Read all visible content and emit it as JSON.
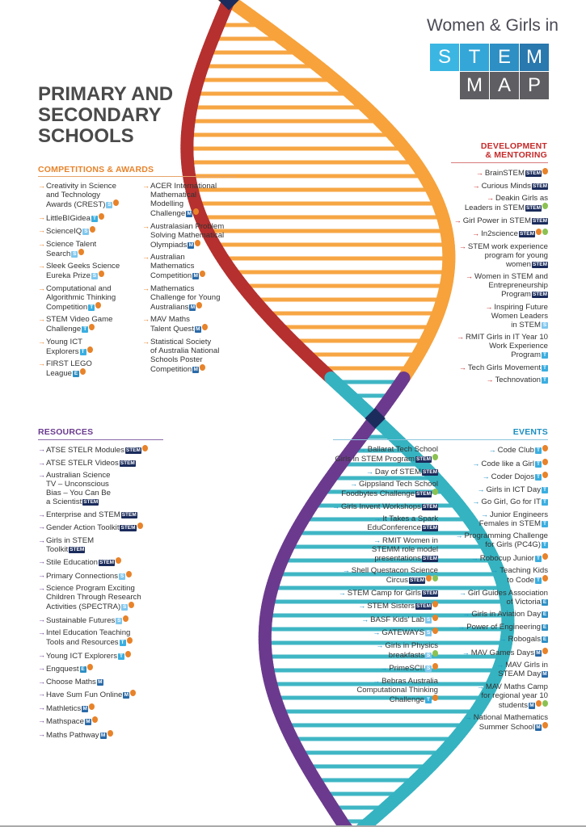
{
  "logo": {
    "title": "Women & Girls in",
    "stem_letters": [
      "S",
      "T",
      "E",
      "M"
    ],
    "map_letters": [
      "M",
      "A",
      "P"
    ]
  },
  "page_title": [
    "PRIMARY AND",
    "SECONDARY",
    "SCHOOLS"
  ],
  "colors": {
    "helix_orange": "#f7a23b",
    "helix_red": "#b5302f",
    "helix_purple": "#6b3a8e",
    "helix_teal": "#35b3c1",
    "helix_navy": "#1b2c5c"
  },
  "badge_legend": {
    "STEM": "STEM badge",
    "S": "science badge",
    "T": "technology badge",
    "E": "engineering badge",
    "M": "maths badge",
    "C": "orange circle badge",
    "P": "green circle badge"
  },
  "competitions": {
    "heading": "COMPETITIONS & AWARDS",
    "col1": [
      {
        "lines": [
          "Creativity in Science",
          "and Technology",
          "Awards (CREST)"
        ],
        "badges": [
          "S",
          "C"
        ]
      },
      {
        "lines": [
          "LittleBIGidea"
        ],
        "badges": [
          "T",
          "C"
        ]
      },
      {
        "lines": [
          "ScienceIQ"
        ],
        "badges": [
          "S",
          "C"
        ]
      },
      {
        "lines": [
          "Science Talent",
          "Search"
        ],
        "badges": [
          "S",
          "C"
        ]
      },
      {
        "lines": [
          "Sleek Geeks Science",
          "Eureka Prize"
        ],
        "badges": [
          "S",
          "C"
        ]
      },
      {
        "lines": [
          "Computational and",
          "Algorithmic Thinking",
          "Competition"
        ],
        "badges": [
          "T",
          "C"
        ]
      },
      {
        "lines": [
          "STEM Video Game",
          "Challenge"
        ],
        "badges": [
          "T",
          "C"
        ]
      },
      {
        "lines": [
          "Young ICT",
          "Explorers"
        ],
        "badges": [
          "T",
          "C"
        ]
      },
      {
        "lines": [
          "FIRST LEGO",
          "League"
        ],
        "badges": [
          "E",
          "C"
        ]
      }
    ],
    "col2": [
      {
        "lines": [
          "ACER International",
          "Mathematical",
          "Modelling",
          "Challenge"
        ],
        "badges": [
          "M",
          "C"
        ]
      },
      {
        "lines": [
          "Australasian Problem",
          "Solving Mathematical",
          "Olympiads"
        ],
        "badges": [
          "M",
          "C"
        ]
      },
      {
        "lines": [
          "Australian",
          "Mathematics",
          "Competition"
        ],
        "badges": [
          "M",
          "C"
        ]
      },
      {
        "lines": [
          "Mathematics",
          "Challenge for Young",
          "Australians"
        ],
        "badges": [
          "M",
          "C"
        ]
      },
      {
        "lines": [
          "MAV Maths",
          "Talent Quest"
        ],
        "badges": [
          "M",
          "C"
        ]
      },
      {
        "lines": [
          "Statistical Society",
          "of Australia National",
          "Schools Poster",
          "Competition"
        ],
        "badges": [
          "M",
          "C"
        ]
      }
    ]
  },
  "development": {
    "heading": [
      "DEVELOPMENT",
      "& MENTORING"
    ],
    "items": [
      {
        "lines": [
          "BrainSTEM"
        ],
        "badges": [
          "STEM",
          "C"
        ]
      },
      {
        "lines": [
          "Curious Minds"
        ],
        "badges": [
          "STEM"
        ]
      },
      {
        "lines": [
          "Deakin Girls as",
          "Leaders in STEM"
        ],
        "badges": [
          "STEM",
          "P"
        ]
      },
      {
        "lines": [
          "Girl Power in STEM"
        ],
        "badges": [
          "STEM"
        ]
      },
      {
        "lines": [
          "In2science"
        ],
        "badges": [
          "STEM",
          "C",
          "P"
        ]
      },
      {
        "lines": [
          "STEM work experience",
          "program for young",
          "women"
        ],
        "badges": [
          "STEM"
        ]
      },
      {
        "lines": [
          "Women in STEM and",
          "Entrepreneurship",
          "Program"
        ],
        "badges": [
          "STEM"
        ]
      },
      {
        "lines": [
          "Inspiring Future",
          "Women Leaders",
          "in STEM"
        ],
        "badges": [
          "S"
        ]
      },
      {
        "lines": [
          "RMIT Girls in IT Year 10",
          "Work Experience",
          "Program"
        ],
        "badges": [
          "T"
        ]
      },
      {
        "lines": [
          "Tech Girls Movement"
        ],
        "badges": [
          "T"
        ]
      },
      {
        "lines": [
          "Technovation"
        ],
        "badges": [
          "T"
        ]
      }
    ]
  },
  "resources": {
    "heading": "RESOURCES",
    "items": [
      {
        "lines": [
          "ATSE STELR Modules"
        ],
        "badges": [
          "STEM",
          "C"
        ]
      },
      {
        "lines": [
          "ATSE STELR Videos"
        ],
        "badges": [
          "STEM"
        ]
      },
      {
        "lines": [
          "Australian Science",
          "TV – Unconscious",
          "Bias – You Can Be",
          "a Scientist"
        ],
        "badges": [
          "STEM"
        ]
      },
      {
        "lines": [
          "Enterprise and STEM"
        ],
        "badges": [
          "STEM"
        ]
      },
      {
        "lines": [
          "Gender Action Toolkit"
        ],
        "badges": [
          "STEM",
          "C"
        ]
      },
      {
        "lines": [
          "Girls in STEM",
          "Toolkit"
        ],
        "badges": [
          "STEM"
        ]
      },
      {
        "lines": [
          "Stile Education"
        ],
        "badges": [
          "STEM",
          "C"
        ]
      },
      {
        "lines": [
          "Primary Connections"
        ],
        "badges": [
          "S",
          "C"
        ]
      },
      {
        "lines": [
          "Science Program Exciting",
          "Children Through Research",
          "Activities (SPECTRA)"
        ],
        "badges": [
          "S",
          "C"
        ]
      },
      {
        "lines": [
          "Sustainable Futures"
        ],
        "badges": [
          "S",
          "C"
        ]
      },
      {
        "lines": [
          "Intel Education Teaching",
          "Tools and Resources"
        ],
        "badges": [
          "T",
          "C"
        ]
      },
      {
        "lines": [
          "Young ICT Explorers"
        ],
        "badges": [
          "T",
          "C"
        ]
      },
      {
        "lines": [
          "Engquest"
        ],
        "badges": [
          "E",
          "C"
        ]
      },
      {
        "lines": [
          "Choose Maths"
        ],
        "badges": [
          "M"
        ]
      },
      {
        "lines": [
          "Have Sum Fun Online"
        ],
        "badges": [
          "M",
          "C"
        ]
      },
      {
        "lines": [
          "Mathletics"
        ],
        "badges": [
          "M",
          "C"
        ]
      },
      {
        "lines": [
          "Mathspace"
        ],
        "badges": [
          "M",
          "C"
        ]
      },
      {
        "lines": [
          "Maths Pathway"
        ],
        "badges": [
          "M",
          "C"
        ]
      }
    ]
  },
  "events": {
    "heading": "EVENTS",
    "col1": [
      {
        "lines": [
          "Ballarat Tech School",
          "Girls in STEM Program"
        ],
        "badges": [
          "STEM",
          "P"
        ]
      },
      {
        "lines": [
          "Day of STEM"
        ],
        "badges": [
          "STEM"
        ]
      },
      {
        "lines": [
          "Gippsland Tech School",
          "Foodbytes Challenge"
        ],
        "badges": [
          "STEM",
          "P"
        ]
      },
      {
        "lines": [
          "Girls Invent Workshops"
        ],
        "badges": [
          "STEM"
        ]
      },
      {
        "lines": [
          "It Takes a Spark",
          "EduConference"
        ],
        "badges": [
          "STEM"
        ]
      },
      {
        "lines": [
          "RMIT Women in",
          "STEMM role model",
          "presentations"
        ],
        "badges": [
          "STEM"
        ]
      },
      {
        "lines": [
          "Shell Questacon Science",
          "Circus"
        ],
        "badges": [
          "STEM",
          "C",
          "P"
        ]
      },
      {
        "lines": [
          "STEM Camp for Girls"
        ],
        "badges": [
          "STEM"
        ]
      },
      {
        "lines": [
          "STEM Sisters"
        ],
        "badges": [
          "STEM",
          "C"
        ]
      },
      {
        "lines": [
          "BASF Kids' Lab"
        ],
        "badges": [
          "S",
          "C"
        ]
      },
      {
        "lines": [
          "GATEWAYS"
        ],
        "badges": [
          "S",
          "C"
        ]
      },
      {
        "lines": [
          "Girls in Physics",
          "breakfasts"
        ],
        "badges": [
          "S",
          "P"
        ]
      },
      {
        "lines": [
          "PrimeSCI!"
        ],
        "badges": [
          "S",
          "C"
        ]
      },
      {
        "lines": [
          "Bebras Australia",
          "Computational Thinking",
          "Challenge"
        ],
        "badges": [
          "T",
          "C"
        ]
      }
    ],
    "col2": [
      {
        "lines": [
          "Code Club"
        ],
        "badges": [
          "T",
          "C"
        ]
      },
      {
        "lines": [
          "Code like a Girl"
        ],
        "badges": [
          "T",
          "C"
        ]
      },
      {
        "lines": [
          "Coder Dojos"
        ],
        "badges": [
          "T",
          "C"
        ]
      },
      {
        "lines": [
          "Girls in ICT Day"
        ],
        "badges": [
          "T"
        ]
      },
      {
        "lines": [
          "Go Girl, Go for IT"
        ],
        "badges": [
          "T"
        ]
      },
      {
        "lines": [
          "Junior Engineers",
          "Females in STEM"
        ],
        "badges": [
          "T"
        ]
      },
      {
        "lines": [
          "Programming Challenge",
          "for Girls (PC4G)"
        ],
        "badges": [
          "T"
        ]
      },
      {
        "lines": [
          "Robocup Junior"
        ],
        "badges": [
          "T",
          "C"
        ]
      },
      {
        "lines": [
          "Teaching Kids",
          "to Code"
        ],
        "badges": [
          "T",
          "C"
        ]
      },
      {
        "lines": [
          "Girl Guides Association",
          "of Victoria"
        ],
        "badges": [
          "E"
        ]
      },
      {
        "lines": [
          "Girls in Aviation Day"
        ],
        "badges": [
          "E"
        ]
      },
      {
        "lines": [
          "Power of Engineering"
        ],
        "badges": [
          "E"
        ]
      },
      {
        "lines": [
          "Robogals"
        ],
        "badges": [
          "E"
        ]
      },
      {
        "lines": [
          "MAV Games Days"
        ],
        "badges": [
          "M",
          "C"
        ]
      },
      {
        "lines": [
          "MAV Girls in",
          "STEAM Day"
        ],
        "badges": [
          "M"
        ]
      },
      {
        "lines": [
          "MAV Maths Camp",
          "for regional year 10",
          "students"
        ],
        "badges": [
          "M",
          "C",
          "P"
        ]
      },
      {
        "lines": [
          "National Mathematics",
          "Summer School"
        ],
        "badges": [
          "M",
          "C"
        ]
      }
    ]
  }
}
